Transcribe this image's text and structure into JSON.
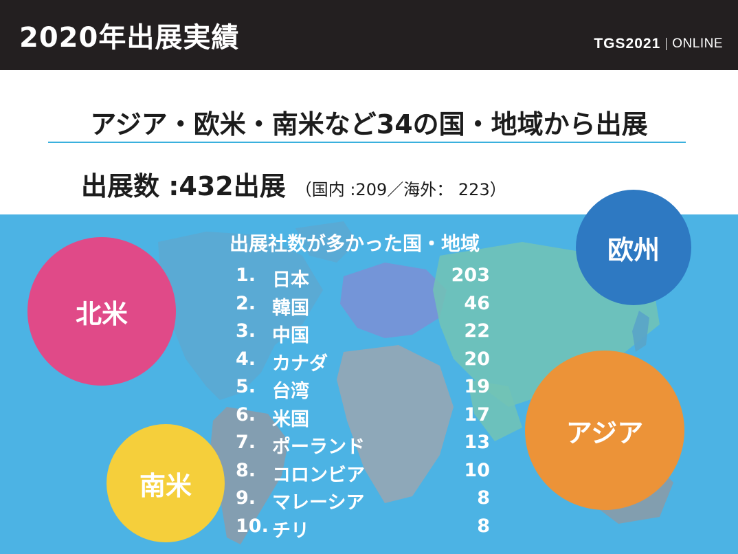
{
  "header": {
    "title": "2020年出展実績",
    "brand_logo": "TGS2021",
    "brand_sub": "ONLINE"
  },
  "headline": "アジア・欧米・南米など34の国・地域から出展",
  "exhibit_count": {
    "main": "出展数 :432出展",
    "detail": "（国内 :209／海外： 223）"
  },
  "ranking": {
    "title": "出展社数が多かった国・地域",
    "items": [
      {
        "rank": "1.",
        "name": "日本",
        "count": "203"
      },
      {
        "rank": "2.",
        "name": "韓国",
        "count": "46"
      },
      {
        "rank": "3.",
        "name": "中国",
        "count": "22"
      },
      {
        "rank": "4.",
        "name": "カナダ",
        "count": "20"
      },
      {
        "rank": "5.",
        "name": "台湾",
        "count": "19"
      },
      {
        "rank": "6.",
        "name": "米国",
        "count": "17"
      },
      {
        "rank": "7.",
        "name": "ポーランド",
        "count": "13"
      },
      {
        "rank": "8.",
        "name": "コロンビア",
        "count": "10"
      },
      {
        "rank": "9.",
        "name": "マレーシア",
        "count": "8"
      },
      {
        "rank": "10.",
        "name": "チリ",
        "count": "8"
      }
    ]
  },
  "regions": {
    "north_america": "北米",
    "europe": "欧州",
    "asia": "アジア",
    "south_america": "南米"
  },
  "colors": {
    "header_bg": "#231f20",
    "accent_rule": "#3ab0dd",
    "map_bg": "#4cb3e4",
    "north_america": "#e04a88",
    "europe": "#2e79c2",
    "asia": "#ec9338",
    "south_america": "#f5cf3b"
  }
}
